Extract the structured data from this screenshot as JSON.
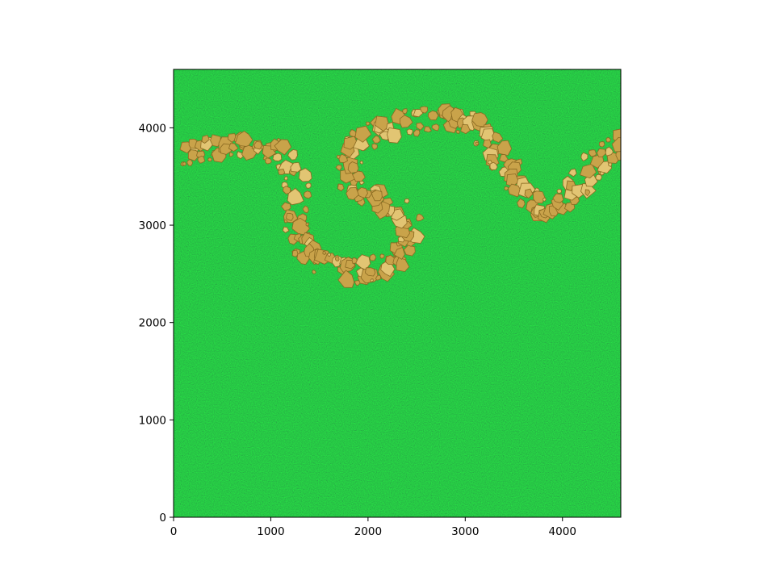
{
  "figure": {
    "background": "#ffffff"
  },
  "chart_data": {
    "type": "heatmap",
    "title": "",
    "xlabel": "",
    "ylabel": "",
    "xlim": [
      0,
      4600
    ],
    "ylim": [
      0,
      4600
    ],
    "x_ticks": [
      0,
      1000,
      2000,
      3000,
      4000
    ],
    "y_ticks": [
      0,
      1000,
      2000,
      3000,
      4000
    ],
    "x_tick_labels": [
      "0",
      "1000",
      "2000",
      "3000",
      "4000"
    ],
    "y_tick_labels": [
      "0",
      "1000",
      "2000",
      "3000",
      "4000"
    ],
    "grid": false,
    "legend": "none",
    "image_content": "grass texture with a winding path of golden stones",
    "colors": {
      "grass": "#1c7d24",
      "grass_dark": "#0d4a14",
      "stone": "#c9a34a",
      "stone_edge": "#8a6a22",
      "stone_highlight": "#e2c573"
    },
    "path_centerline": [
      [
        0,
        3720
      ],
      [
        300,
        3780
      ],
      [
        700,
        3830
      ],
      [
        1050,
        3760
      ],
      [
        1250,
        3520
      ],
      [
        1250,
        3080
      ],
      [
        1350,
        2760
      ],
      [
        1650,
        2560
      ],
      [
        2000,
        2540
      ],
      [
        2350,
        2680
      ],
      [
        2450,
        2960
      ],
      [
        2250,
        3200
      ],
      [
        1850,
        3380
      ],
      [
        1850,
        3760
      ],
      [
        2150,
        3980
      ],
      [
        2550,
        4080
      ],
      [
        2900,
        4100
      ],
      [
        3200,
        3920
      ],
      [
        3450,
        3560
      ],
      [
        3750,
        3180
      ],
      [
        4050,
        3260
      ],
      [
        4300,
        3600
      ],
      [
        4550,
        3800
      ],
      [
        4600,
        3830
      ]
    ],
    "path_width": 260
  }
}
